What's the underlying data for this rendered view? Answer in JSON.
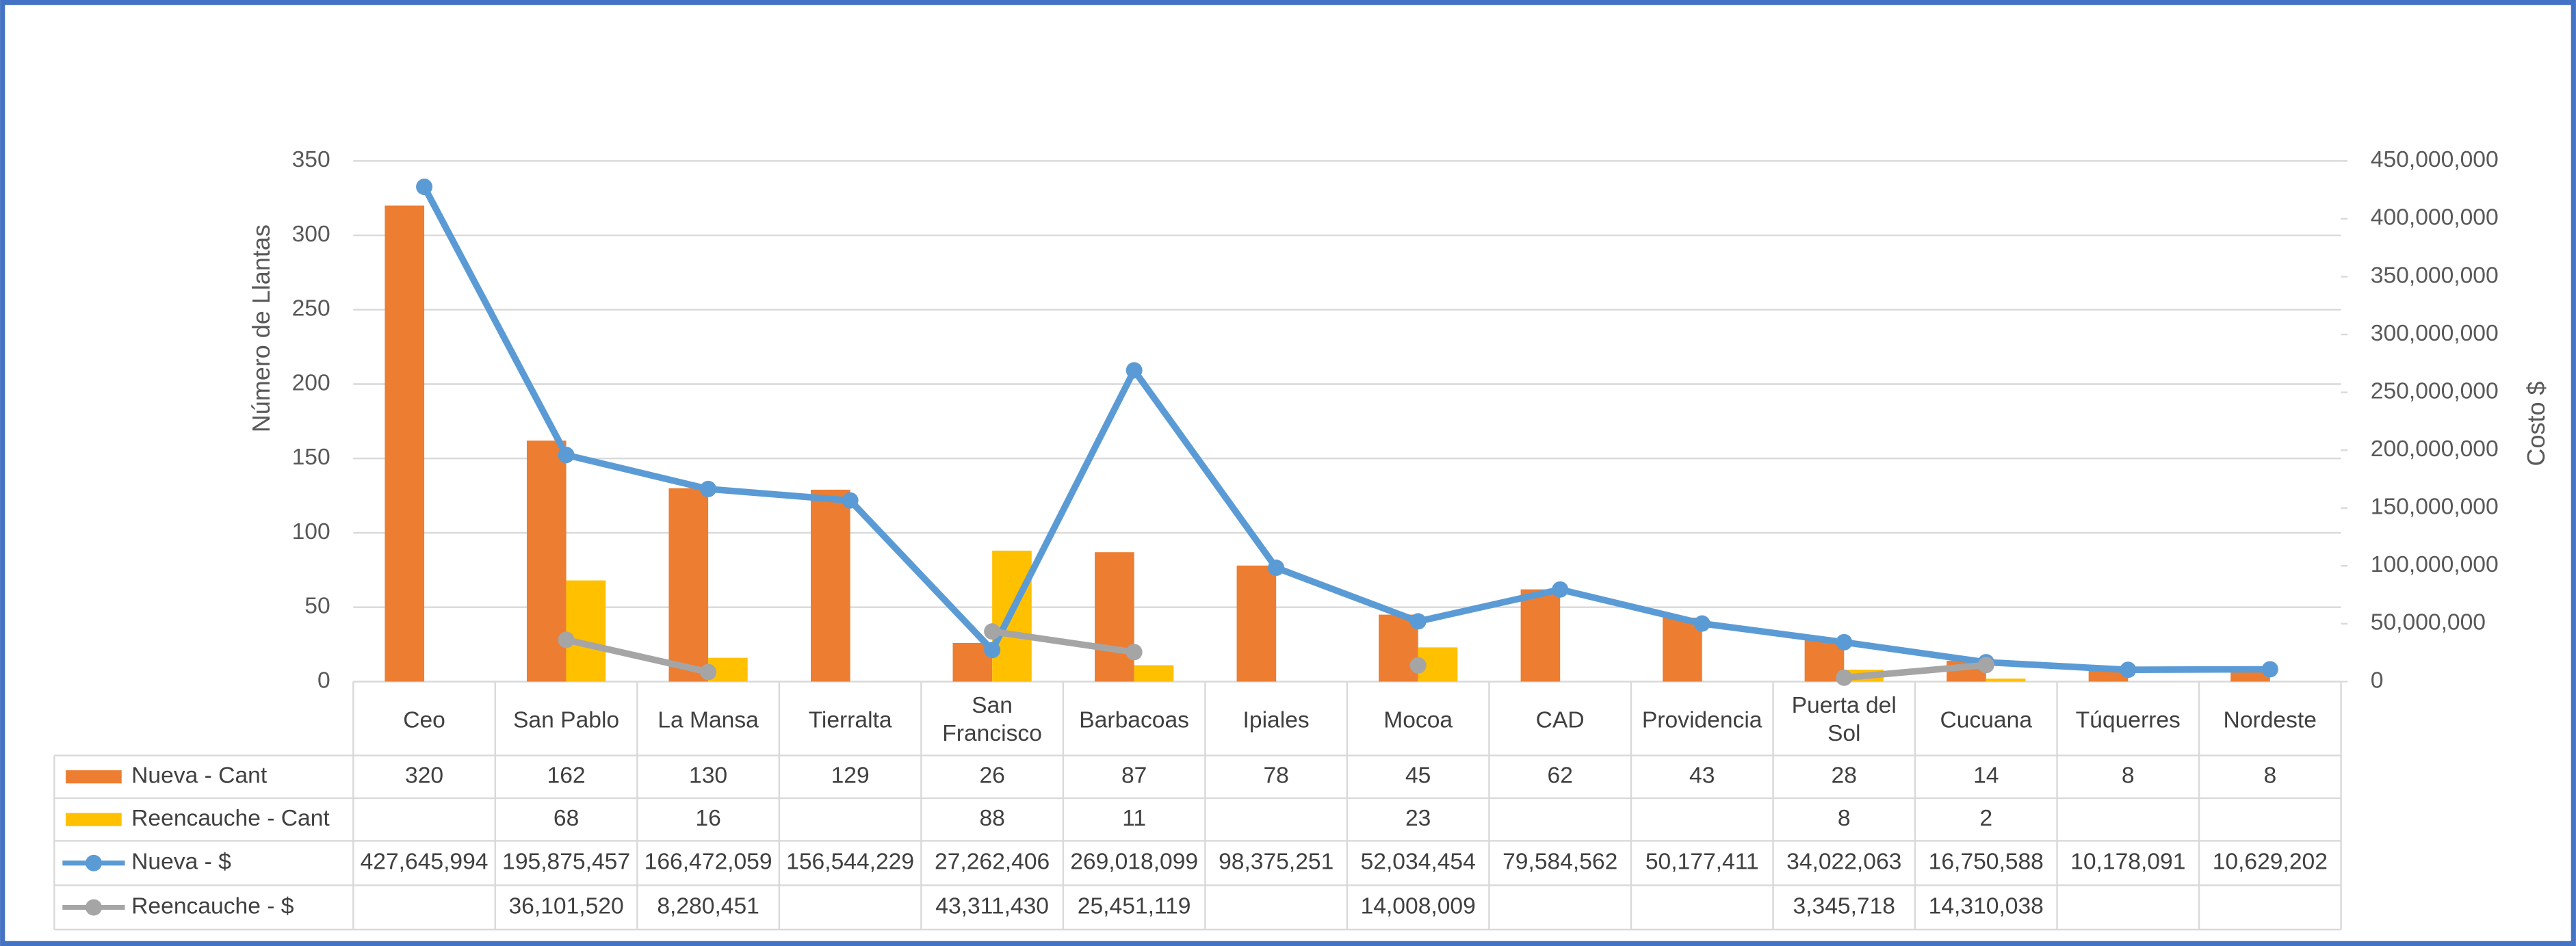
{
  "chart_data": {
    "type": "bar_line_table",
    "y_label": "Número de Llantas",
    "y2_label": "Costo $",
    "categories": [
      "Ceo",
      "San Pablo",
      "La Mansa",
      "Tierralta",
      "San Francisco",
      "Barbacoas",
      "Ipiales",
      "Mocoa",
      "CAD",
      "Providencia",
      "Puerta del Sol",
      "Cucuana",
      "Túquerres",
      "Nordeste"
    ],
    "ylim": [
      0,
      350
    ],
    "yticks": [
      0,
      50,
      100,
      150,
      200,
      250,
      300,
      350
    ],
    "y2lim": [
      0,
      450000000
    ],
    "y2ticks": [
      0,
      {
        "value": 50000000,
        "label": "50,000,000"
      },
      {
        "value": 100000000,
        "label": "100,000,000"
      },
      {
        "value": 150000000,
        "label": "150,000,000"
      },
      {
        "value": 200000000,
        "label": "200,000,000"
      },
      {
        "value": 250000000,
        "label": "250,000,000"
      },
      {
        "value": 300000000,
        "label": "300,000,000"
      },
      {
        "value": 350000000,
        "label": "350,000,000"
      },
      {
        "value": 400000000,
        "label": "400,000,000"
      },
      {
        "value": 450000000,
        "label": "450,000,000"
      }
    ],
    "grid": true,
    "series": [
      {
        "name": "Nueva - Cant",
        "kind": "bar",
        "color": "#ED7D31",
        "values": [
          320,
          162,
          130,
          129,
          26,
          87,
          78,
          45,
          62,
          43,
          28,
          14,
          8,
          8
        ]
      },
      {
        "name": "Reencauche - Cant",
        "kind": "bar",
        "color": "#FFC000",
        "values": [
          null,
          68,
          16,
          null,
          88,
          11,
          null,
          23,
          null,
          null,
          8,
          2,
          null,
          null
        ]
      },
      {
        "name": "Nueva - $",
        "kind": "line",
        "axis": "y2",
        "color": "#5B9BD5",
        "values": [
          427645994,
          195875457,
          166472059,
          156544229,
          27262406,
          269018099,
          98375251,
          52034454,
          79584562,
          50177411,
          34022063,
          16750588,
          10178091,
          10629202
        ],
        "value_labels": [
          "427,645,994",
          "195,875,457",
          "166,472,059",
          "156,544,229",
          "27,262,406",
          "269,018,099",
          "98,375,251",
          "52,034,454",
          "79,584,562",
          "50,177,411",
          "34,022,063",
          "16,750,588",
          "10,178,091",
          "10,629,202"
        ]
      },
      {
        "name": "Reencauche - $",
        "kind": "line",
        "axis": "y2",
        "color": "#A5A5A5",
        "values": [
          null,
          36101520,
          8280451,
          null,
          43311430,
          25451119,
          null,
          14008009,
          null,
          null,
          3345718,
          14310038,
          null,
          null
        ],
        "value_labels": [
          null,
          "36,101,520",
          "8,280,451",
          null,
          "43,311,430",
          "25,451,119",
          null,
          "14,008,009",
          null,
          null,
          "3,345,718",
          "14,310,038",
          null,
          null
        ]
      }
    ]
  }
}
